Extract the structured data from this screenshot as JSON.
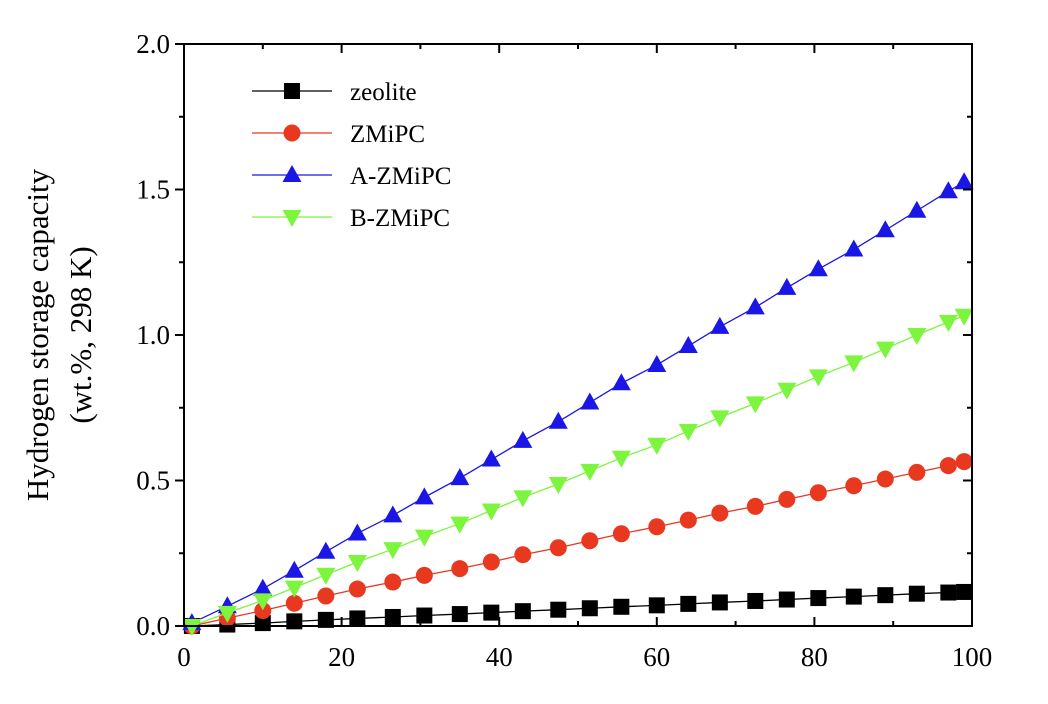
{
  "chart_data": {
    "type": "line",
    "xlim": [
      0,
      100
    ],
    "ylim": [
      0.0,
      2.0
    ],
    "x_ticks": [
      "0",
      "20",
      "40",
      "60",
      "80",
      "100"
    ],
    "y_ticks": [
      "0.0",
      "0.5",
      "1.0",
      "1.5",
      "2.0"
    ],
    "xlabel": "",
    "ylabel": "Hydrogen storage capacity",
    "ylabel_line2": "(wt.%, 298 K)",
    "grid": false,
    "legend_position": "top-left",
    "x": [
      1,
      5.5,
      10,
      14,
      18,
      22,
      26.5,
      30.5,
      35,
      39,
      43,
      47.5,
      51.5,
      55.5,
      60,
      64,
      68,
      72.5,
      76.5,
      80.5,
      85,
      89,
      93,
      97,
      99
    ],
    "series": [
      {
        "name": "zeolite",
        "color": "#000000",
        "marker": "square",
        "values": [
          0.0,
          0.005,
          0.01,
          0.016,
          0.021,
          0.026,
          0.031,
          0.036,
          0.041,
          0.046,
          0.051,
          0.056,
          0.061,
          0.066,
          0.071,
          0.076,
          0.081,
          0.086,
          0.091,
          0.096,
          0.101,
          0.106,
          0.111,
          0.115,
          0.117
        ]
      },
      {
        "name": "ZMiPC",
        "color": "#e8381f",
        "marker": "circle",
        "values": [
          0.0,
          0.027,
          0.053,
          0.078,
          0.103,
          0.127,
          0.151,
          0.174,
          0.197,
          0.22,
          0.245,
          0.269,
          0.293,
          0.317,
          0.341,
          0.364,
          0.388,
          0.411,
          0.435,
          0.458,
          0.482,
          0.505,
          0.528,
          0.551,
          0.565
        ]
      },
      {
        "name": "A-ZMiPC",
        "color": "#1a16e6",
        "marker": "triangle-up",
        "values": [
          0.01,
          0.068,
          0.128,
          0.19,
          0.255,
          0.318,
          0.38,
          0.442,
          0.508,
          0.572,
          0.636,
          0.702,
          0.768,
          0.834,
          0.897,
          0.962,
          1.028,
          1.095,
          1.162,
          1.226,
          1.294,
          1.36,
          1.427,
          1.494,
          1.525
        ]
      },
      {
        "name": "B-ZMiPC",
        "color": "#7df53e",
        "marker": "triangle-down",
        "values": [
          0.0,
          0.045,
          0.088,
          0.132,
          0.176,
          0.22,
          0.264,
          0.307,
          0.352,
          0.397,
          0.442,
          0.488,
          0.533,
          0.578,
          0.623,
          0.67,
          0.717,
          0.765,
          0.812,
          0.858,
          0.906,
          0.953,
          1.0,
          1.045,
          1.066
        ]
      }
    ]
  }
}
